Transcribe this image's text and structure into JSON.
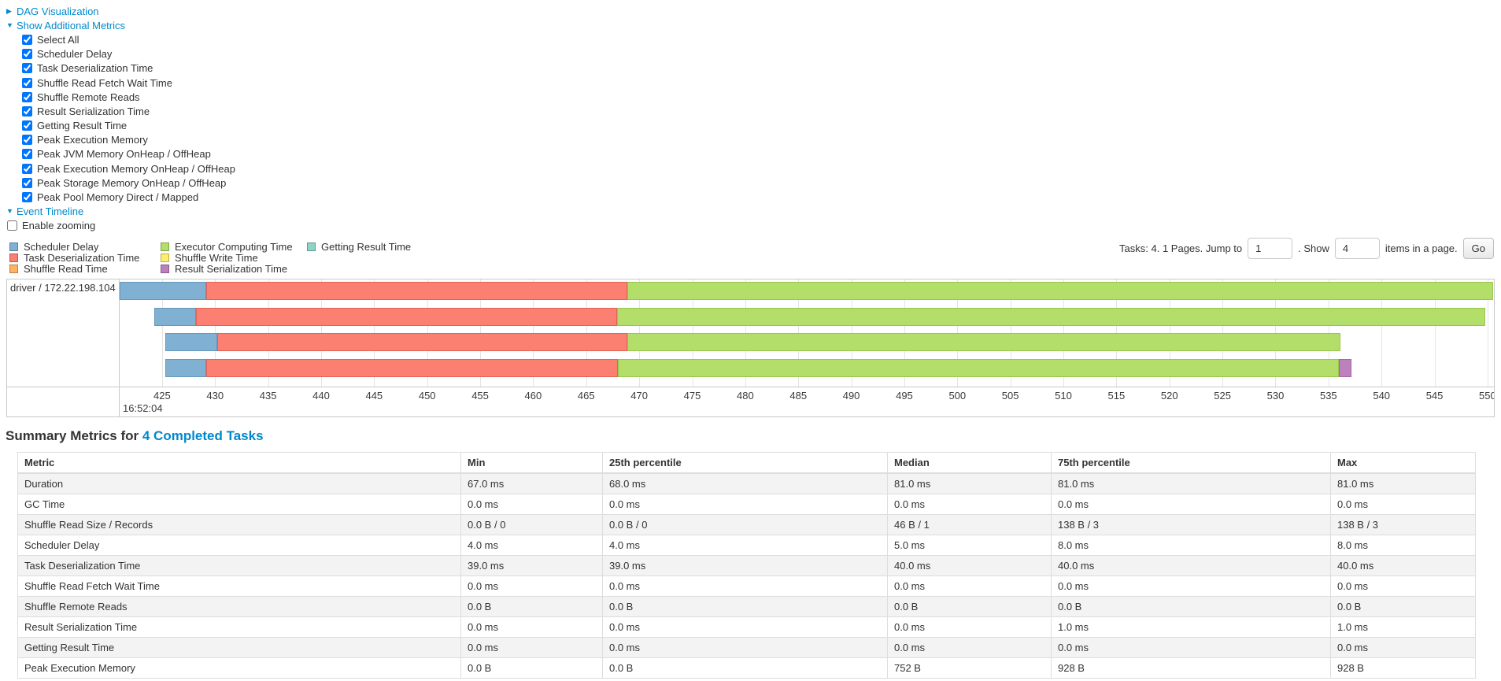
{
  "colors": {
    "link": "#0088cc",
    "grid": "#e4e4e4",
    "chart_border": "#c9c9c9",
    "stripe": "#f3f3f3"
  },
  "controls": {
    "dag_label": "DAG Visualization",
    "show_metrics_label": "Show Additional Metrics",
    "checkboxes": [
      {
        "label": "Select All",
        "checked": true
      },
      {
        "label": "Scheduler Delay",
        "checked": true
      },
      {
        "label": "Task Deserialization Time",
        "checked": true
      },
      {
        "label": "Shuffle Read Fetch Wait Time",
        "checked": true
      },
      {
        "label": "Shuffle Remote Reads",
        "checked": true
      },
      {
        "label": "Result Serialization Time",
        "checked": true
      },
      {
        "label": "Getting Result Time",
        "checked": true
      },
      {
        "label": "Peak Execution Memory",
        "checked": true
      },
      {
        "label": "Peak JVM Memory OnHeap / OffHeap",
        "checked": true
      },
      {
        "label": "Peak Execution Memory OnHeap / OffHeap",
        "checked": true
      },
      {
        "label": "Peak Storage Memory OnHeap / OffHeap",
        "checked": true
      },
      {
        "label": "Peak Pool Memory Direct / Mapped",
        "checked": true
      }
    ],
    "event_timeline_label": "Event Timeline",
    "enable_zooming": {
      "label": "Enable zooming",
      "checked": false
    }
  },
  "pagination": {
    "tasks_text": "Tasks: 4. 1 Pages. Jump to",
    "jump_value": "1",
    "show_label": ". Show",
    "show_value": "4",
    "items_text": "items in a page.",
    "go_label": "Go"
  },
  "chart_data": {
    "type": "timeline",
    "row_label": "driver / 172.22.198.104",
    "time_note": "x axis = milliseconds within second 16:52:04",
    "axis": {
      "t_min": 421.0,
      "t_max": 550.6,
      "tick_start": 425,
      "tick_end": 550,
      "tick_step": 5,
      "major_label": "16:52:04"
    },
    "legend": [
      {
        "key": "scheduler_delay",
        "label": "Scheduler Delay",
        "color": "#80B1D3",
        "border": "#6498bd"
      },
      {
        "key": "task_deserialization",
        "label": "Task Deserialization Time",
        "color": "#FB8072",
        "border": "#e06358"
      },
      {
        "key": "shuffle_read",
        "label": "Shuffle Read Time",
        "color": "#FDB462",
        "border": "#e09a48"
      },
      {
        "key": "executor_computing",
        "label": "Executor Computing Time",
        "color": "#B3DE69",
        "border": "#98c64d"
      },
      {
        "key": "shuffle_write",
        "label": "Shuffle Write Time",
        "color": "#FFED6F",
        "border": "#e3d055"
      },
      {
        "key": "result_serialization",
        "label": "Result Serialization Time",
        "color": "#BC80BD",
        "border": "#a365a4"
      },
      {
        "key": "getting_result",
        "label": "Getting Result Time",
        "color": "#8DD3C7",
        "border": "#72b9ac"
      }
    ],
    "legend_columns": [
      [
        0,
        1,
        2
      ],
      [
        3,
        4,
        5
      ],
      [
        6
      ]
    ],
    "tasks": [
      {
        "segments": [
          {
            "key": "scheduler_delay",
            "start": 421.0,
            "end": 429.2
          },
          {
            "key": "task_deserialization",
            "start": 429.2,
            "end": 468.9
          },
          {
            "key": "executor_computing",
            "start": 468.9,
            "end": 550.5
          }
        ]
      },
      {
        "segments": [
          {
            "key": "scheduler_delay",
            "start": 424.3,
            "end": 428.2
          },
          {
            "key": "task_deserialization",
            "start": 428.2,
            "end": 467.9
          },
          {
            "key": "executor_computing",
            "start": 467.9,
            "end": 549.8
          }
        ]
      },
      {
        "segments": [
          {
            "key": "scheduler_delay",
            "start": 425.3,
            "end": 430.2
          },
          {
            "key": "task_deserialization",
            "start": 430.2,
            "end": 468.9
          },
          {
            "key": "executor_computing",
            "start": 468.9,
            "end": 536.1
          }
        ]
      },
      {
        "segments": [
          {
            "key": "scheduler_delay",
            "start": 425.3,
            "end": 429.2
          },
          {
            "key": "task_deserialization",
            "start": 429.2,
            "end": 468.0
          },
          {
            "key": "executor_computing",
            "start": 468.0,
            "end": 536.0
          },
          {
            "key": "result_serialization",
            "start": 536.0,
            "end": 537.2
          }
        ]
      }
    ]
  },
  "summary": {
    "title_prefix": "Summary Metrics for",
    "title_link": "4 Completed Tasks",
    "headers": [
      "Metric",
      "Min",
      "25th percentile",
      "Median",
      "75th percentile",
      "Max"
    ],
    "rows": [
      [
        "Duration",
        "67.0 ms",
        "68.0 ms",
        "81.0 ms",
        "81.0 ms",
        "81.0 ms"
      ],
      [
        "GC Time",
        "0.0 ms",
        "0.0 ms",
        "0.0 ms",
        "0.0 ms",
        "0.0 ms"
      ],
      [
        "Shuffle Read Size / Records",
        "0.0 B / 0",
        "0.0 B / 0",
        "46 B / 1",
        "138 B / 3",
        "138 B / 3"
      ],
      [
        "Scheduler Delay",
        "4.0 ms",
        "4.0 ms",
        "5.0 ms",
        "8.0 ms",
        "8.0 ms"
      ],
      [
        "Task Deserialization Time",
        "39.0 ms",
        "39.0 ms",
        "40.0 ms",
        "40.0 ms",
        "40.0 ms"
      ],
      [
        "Shuffle Read Fetch Wait Time",
        "0.0 ms",
        "0.0 ms",
        "0.0 ms",
        "0.0 ms",
        "0.0 ms"
      ],
      [
        "Shuffle Remote Reads",
        "0.0 B",
        "0.0 B",
        "0.0 B",
        "0.0 B",
        "0.0 B"
      ],
      [
        "Result Serialization Time",
        "0.0 ms",
        "0.0 ms",
        "0.0 ms",
        "1.0 ms",
        "1.0 ms"
      ],
      [
        "Getting Result Time",
        "0.0 ms",
        "0.0 ms",
        "0.0 ms",
        "0.0 ms",
        "0.0 ms"
      ],
      [
        "Peak Execution Memory",
        "0.0 B",
        "0.0 B",
        "752 B",
        "928 B",
        "928 B"
      ]
    ]
  }
}
